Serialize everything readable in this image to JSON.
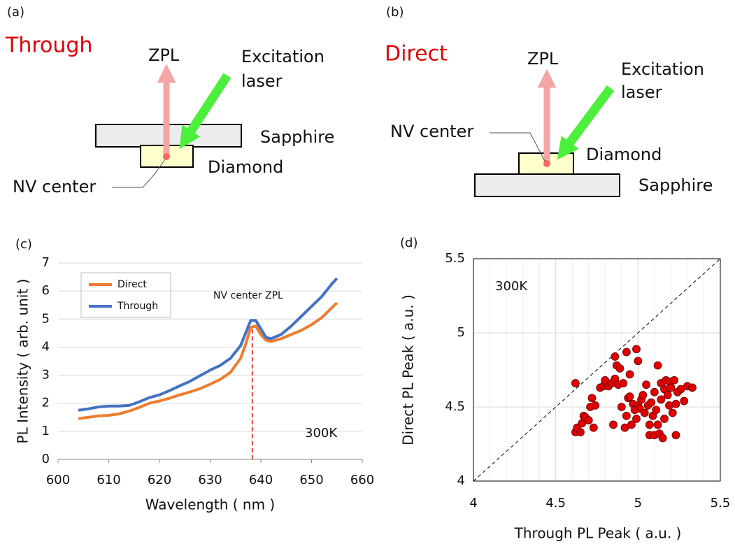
{
  "diagrams": {
    "a": {
      "label": "(a)",
      "title": "Through",
      "zpl": "ZPL",
      "laser_1": "Excitation",
      "laser_2": "laser",
      "sapphire": "Sapphire",
      "diamond": "Diamond",
      "nv": "NV center"
    },
    "b": {
      "label": "(b)",
      "title": "Direct",
      "zpl": "ZPL",
      "laser_1": "Excitation",
      "laser_2": "laser",
      "sapphire": "Sapphire",
      "diamond": "Diamond",
      "nv": "NV center"
    }
  },
  "chart_data": [
    {
      "type": "line",
      "label": "(c)",
      "ylabel": "PL Intensity ( arb. unit )",
      "xlabel": "Wavelength ( nm )",
      "annotation": "NV center ZPL",
      "temperature": "300K",
      "zpl_line": 638.3,
      "xlim": [
        600,
        660
      ],
      "xticks": [
        600,
        610,
        620,
        630,
        640,
        650,
        660
      ],
      "ylim": [
        0,
        7
      ],
      "yticks": [
        0,
        1,
        2,
        3,
        4,
        5,
        6,
        7
      ],
      "grid": true,
      "x": [
        604,
        606,
        608,
        610,
        612,
        614,
        616,
        618,
        620,
        622,
        624,
        626,
        628,
        630,
        632,
        634,
        636,
        637,
        638,
        639,
        640,
        641,
        642,
        644,
        646,
        648,
        650,
        652,
        654,
        655
      ],
      "series": [
        {
          "name": "Direct",
          "color": "#ed7d31",
          "values": [
            1.45,
            1.5,
            1.55,
            1.57,
            1.62,
            1.72,
            1.85,
            2.0,
            2.08,
            2.18,
            2.3,
            2.4,
            2.52,
            2.68,
            2.85,
            3.1,
            3.6,
            4.1,
            4.7,
            4.75,
            4.45,
            4.25,
            4.2,
            4.3,
            4.45,
            4.6,
            4.8,
            5.05,
            5.4,
            5.58
          ]
        },
        {
          "name": "Through",
          "color": "#4472c4",
          "values": [
            1.75,
            1.8,
            1.87,
            1.9,
            1.9,
            1.92,
            2.05,
            2.2,
            2.3,
            2.45,
            2.62,
            2.78,
            2.98,
            3.18,
            3.35,
            3.6,
            4.05,
            4.5,
            4.95,
            4.95,
            4.65,
            4.35,
            4.3,
            4.45,
            4.75,
            5.1,
            5.45,
            5.8,
            6.25,
            6.45
          ]
        }
      ]
    },
    {
      "type": "scatter",
      "label": "(d)",
      "ylabel": "Direct PL Peak ( a.u. )",
      "xlabel": "Through PL Peak ( a.u. )",
      "temperature": "300K",
      "color": "#e00000",
      "xlim": [
        4,
        5.5
      ],
      "xticks": [
        4,
        4.5,
        5,
        5.5
      ],
      "ylim": [
        4,
        5.5
      ],
      "yticks": [
        4,
        4.5,
        5,
        5.5
      ],
      "grid": true,
      "x": [
        4.62,
        4.62,
        4.63,
        4.65,
        4.66,
        4.67,
        4.68,
        4.7,
        4.71,
        4.72,
        4.73,
        4.74,
        4.77,
        4.79,
        4.8,
        4.82,
        4.84,
        4.85,
        4.86,
        4.86,
        4.87,
        4.88,
        4.89,
        4.9,
        4.91,
        4.92,
        4.93,
        4.93,
        4.94,
        4.95,
        4.95,
        4.96,
        4.97,
        4.98,
        4.99,
        4.99,
        5.0,
        5.0,
        5.01,
        5.02,
        5.03,
        5.04,
        5.05,
        5.06,
        5.07,
        5.07,
        5.08,
        5.09,
        5.1,
        5.1,
        5.11,
        5.12,
        5.12,
        5.13,
        5.14,
        5.14,
        5.15,
        5.16,
        5.16,
        5.17,
        5.18,
        5.19,
        5.19,
        5.2,
        5.21,
        5.22,
        5.23,
        5.23,
        5.24,
        5.26,
        5.28,
        5.3,
        5.33
      ],
      "values": [
        4.66,
        4.33,
        4.36,
        4.33,
        4.39,
        4.44,
        4.43,
        4.41,
        4.5,
        4.56,
        4.36,
        4.51,
        4.63,
        4.64,
        4.68,
        4.64,
        4.66,
        4.38,
        4.69,
        4.84,
        4.78,
        4.65,
        4.76,
        4.5,
        4.66,
        4.36,
        4.87,
        4.44,
        4.56,
        4.72,
        4.57,
        4.38,
        4.52,
        4.48,
        4.89,
        4.42,
        4.81,
        4.51,
        4.49,
        4.55,
        4.58,
        4.46,
        4.65,
        4.51,
        4.38,
        4.31,
        4.53,
        4.44,
        4.6,
        4.31,
        4.48,
        4.78,
        4.38,
        4.32,
        4.55,
        4.66,
        4.29,
        4.62,
        4.42,
        4.68,
        4.58,
        4.67,
        4.51,
        4.63,
        4.46,
        4.68,
        4.31,
        4.52,
        4.6,
        4.62,
        4.54,
        4.64,
        4.63
      ]
    }
  ]
}
